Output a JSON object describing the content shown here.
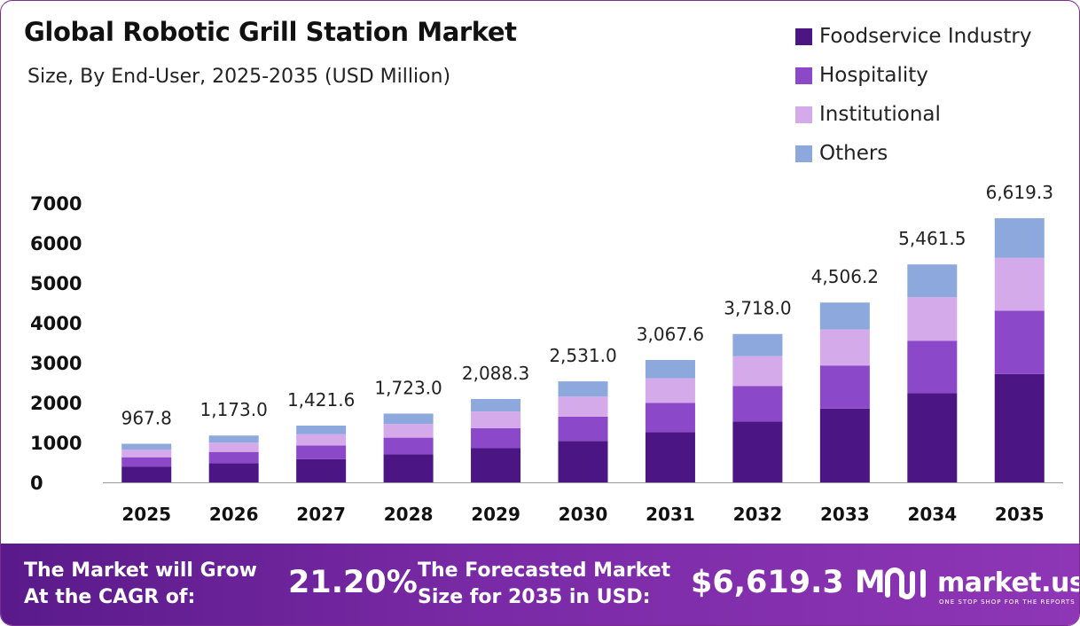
{
  "header": {
    "title": "Global Robotic Grill Station Market",
    "subtitle": "Size, By End-User, 2025-2035 (USD Million)"
  },
  "chart_data": {
    "type": "bar",
    "stacked": true,
    "title": "Global Robotic Grill Station Market",
    "subtitle": "Size, By End-User, 2025-2035 (USD Million)",
    "xlabel": "",
    "ylabel": "",
    "ylim": [
      0,
      7000
    ],
    "yticks": [
      0,
      1000,
      2000,
      3000,
      4000,
      5000,
      6000,
      7000
    ],
    "grid": false,
    "legend_position": "top-right",
    "categories": [
      "2025",
      "2026",
      "2027",
      "2028",
      "2029",
      "2030",
      "2031",
      "2032",
      "2033",
      "2034",
      "2035"
    ],
    "series": [
      {
        "name": "Foodservice Industry",
        "color": "#4b1583",
        "values": [
          396.8,
          480.9,
          582.9,
          706.4,
          856.2,
          1037.7,
          1257.7,
          1524.4,
          1847.5,
          2239.2,
          2713.9
        ]
      },
      {
        "name": "Hospitality",
        "color": "#8b48c8",
        "values": [
          232.3,
          281.5,
          341.2,
          413.5,
          501.2,
          607.4,
          736.2,
          892.3,
          1081.5,
          1310.8,
          1588.6
        ]
      },
      {
        "name": "Institutional",
        "color": "#d5aaea",
        "values": [
          193.6,
          234.6,
          284.3,
          344.6,
          417.7,
          506.2,
          613.5,
          743.6,
          901.2,
          1092.3,
          1323.9
        ]
      },
      {
        "name": "Others",
        "color": "#8ca8dc",
        "values": [
          145.1,
          176.0,
          213.2,
          258.5,
          313.2,
          379.7,
          460.2,
          557.7,
          675.9,
          819.2,
          992.9
        ]
      }
    ],
    "totals": [
      967.8,
      1173.0,
      1421.6,
      1723.0,
      2088.3,
      2531.0,
      3067.6,
      3718.0,
      4506.2,
      5461.5,
      6619.3
    ],
    "total_labels": [
      "967.8",
      "1,173.0",
      "1,421.6",
      "1,723.0",
      "2,088.3",
      "2,531.0",
      "3,067.6",
      "3,718.0",
      "4,506.2",
      "5,461.5",
      "6,619.3"
    ]
  },
  "footer": {
    "cagr_label_line1": "The Market will Grow",
    "cagr_label_line2": "At the CAGR of:",
    "cagr_value": "21.20%",
    "forecast_label_line1": "The Forecasted Market",
    "forecast_label_line2": "Size for 2035 in USD:",
    "forecast_value": "$6,619.3 M",
    "brand_name": "market.us",
    "brand_tagline": "ONE STOP SHOP FOR THE REPORTS",
    "brand_icon": "market-us-logo-icon"
  }
}
